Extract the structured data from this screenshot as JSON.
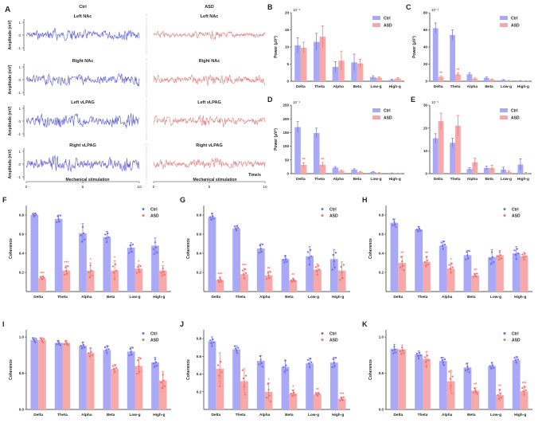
{
  "colors": {
    "ctrl": "#6b6bea",
    "ctrl_fill": "#a9a9f6",
    "asd": "#ee6e6e",
    "asd_fill": "#f7a8a8",
    "trace_ctrl": "#5b5bd6",
    "trace_asd": "#e88080"
  },
  "band_labels": [
    "Delta",
    "Theta",
    "Alpha",
    "Beta",
    "Low-g",
    "High-g"
  ],
  "panel_a": {
    "letter": "A",
    "col_titles": [
      "Ctrl",
      "ASD"
    ],
    "rows": [
      "Left NAc",
      "Right NAc",
      "Left vLPAG",
      "Right vLPAG"
    ],
    "ylabel": "Amplitude (mV)",
    "yticks": [
      "1",
      "0",
      "-1"
    ],
    "xticks": [
      "0",
      "5",
      "10"
    ],
    "time_label": "Time/s",
    "stim_label": "Mechanical stimulation"
  },
  "chart_data": [
    {
      "panel": "B",
      "type": "bar",
      "ylabel": "Power (μV²)",
      "exponent": "10⁻⁴",
      "ylim": [
        0,
        20
      ],
      "yticks": [
        "0",
        "5",
        "10",
        "15",
        "20"
      ],
      "categories": [
        "Delta",
        "Theta",
        "Alpha",
        "Beta",
        "Low-g",
        "High-g"
      ],
      "series": [
        {
          "name": "Ctrl",
          "values": [
            10.5,
            11.5,
            4.2,
            5.5,
            1.2,
            0.4
          ],
          "errors": [
            2.2,
            2.5,
            1.5,
            2.4,
            0.4,
            0.2
          ]
        },
        {
          "name": "ASD",
          "values": [
            9.8,
            13.0,
            6.0,
            5.2,
            1.0,
            0.8
          ],
          "errors": [
            1.6,
            3.2,
            2.8,
            1.2,
            0.3,
            0.3
          ]
        }
      ],
      "sig": [
        "",
        "",
        "",
        "",
        "",
        ""
      ],
      "legend": "top-right"
    },
    {
      "panel": "C",
      "type": "bar",
      "ylabel": "Power (μV²)",
      "exponent": "10⁻⁴",
      "ylim": [
        0,
        80
      ],
      "yticks": [
        "0",
        "20",
        "40",
        "60",
        "80"
      ],
      "categories": [
        "Delta",
        "Theta",
        "Alpha",
        "Beta",
        "Low-g",
        "High-g"
      ],
      "series": [
        {
          "name": "Ctrl",
          "values": [
            62,
            54,
            8,
            4,
            1.5,
            0.6
          ],
          "errors": [
            6,
            6,
            2,
            1,
            0.4,
            0.2
          ]
        },
        {
          "name": "ASD",
          "values": [
            5,
            8,
            3,
            2,
            0.8,
            0.3
          ],
          "errors": [
            1,
            2,
            1,
            0.5,
            0.3,
            0.1
          ]
        }
      ],
      "sig": [
        "**",
        "**",
        "",
        "",
        "",
        ""
      ],
      "legend": "top-right"
    },
    {
      "panel": "D",
      "type": "bar",
      "ylabel": "Power (μV²)",
      "exponent": "10⁻⁴",
      "ylim": [
        0,
        250
      ],
      "yticks": [
        "0",
        "50",
        "100",
        "150",
        "200",
        "250"
      ],
      "categories": [
        "Delta",
        "Theta",
        "Alpha",
        "Beta",
        "Low-g",
        "High-g"
      ],
      "series": [
        {
          "name": "Ctrl",
          "values": [
            170,
            148,
            22,
            15,
            6,
            2
          ],
          "errors": [
            20,
            18,
            4,
            3,
            1.5,
            0.5
          ]
        },
        {
          "name": "ASD",
          "values": [
            32,
            33,
            10,
            6,
            3,
            1
          ],
          "errors": [
            8,
            8,
            3,
            2,
            1,
            0.4
          ]
        }
      ],
      "sig": [
        "**",
        "**",
        "",
        "",
        "",
        ""
      ],
      "legend": "top-right"
    },
    {
      "panel": "E",
      "type": "bar",
      "ylabel": "",
      "exponent": "10⁻⁴",
      "ylim": [
        0,
        30
      ],
      "yticks": [
        "0",
        "10",
        "20",
        "30"
      ],
      "categories": [
        "Delta",
        "Theta",
        "Alpha",
        "Beta",
        "Low-g",
        "High-g"
      ],
      "series": [
        {
          "name": "Ctrl",
          "values": [
            15.5,
            13.5,
            2,
            2.5,
            1.8,
            4
          ],
          "errors": [
            2,
            2,
            0.6,
            0.8,
            1,
            2.5
          ]
        },
        {
          "name": "ASD",
          "values": [
            23,
            21,
            5,
            2.5,
            0.8,
            0.3
          ],
          "errors": [
            3.5,
            4.5,
            1.8,
            1.2,
            0.4,
            0.2
          ]
        }
      ],
      "sig": [
        "",
        "",
        "",
        "",
        "",
        ""
      ],
      "legend": "top-right"
    },
    {
      "panel": "F",
      "type": "bar",
      "ylabel": "Coherence",
      "ylim": [
        0,
        0.9
      ],
      "yticks": [
        "0.2",
        "0.4",
        "0.6",
        "0.8"
      ],
      "categories": [
        "Delta",
        "Theta",
        "Alpha",
        "Beta",
        "Low-g",
        "High-g"
      ],
      "series": [
        {
          "name": "Ctrl",
          "values": [
            0.8,
            0.76,
            0.61,
            0.57,
            0.46,
            0.48
          ],
          "errors": [
            0.02,
            0.04,
            0.1,
            0.06,
            0.05,
            0.08
          ]
        },
        {
          "name": "ASD",
          "values": [
            0.14,
            0.22,
            0.22,
            0.22,
            0.24,
            0.22
          ],
          "errors": [
            0.02,
            0.05,
            0.08,
            0.1,
            0.04,
            0.05
          ]
        }
      ],
      "sig": [
        "***",
        "***",
        "*",
        "*",
        "*",
        "*"
      ],
      "legend": "top-right"
    },
    {
      "panel": "G",
      "type": "bar",
      "ylabel": "Coherence",
      "ylim": [
        0,
        0.9
      ],
      "yticks": [
        "0.2",
        "0.4",
        "0.6",
        "0.8"
      ],
      "categories": [
        "Delta",
        "Theta",
        "Alpha",
        "Beta",
        "Low-g",
        "High-g"
      ],
      "series": [
        {
          "name": "Ctrl",
          "values": [
            0.78,
            0.66,
            0.45,
            0.34,
            0.37,
            0.34
          ],
          "errors": [
            0.04,
            0.03,
            0.05,
            0.04,
            0.1,
            0.1
          ]
        },
        {
          "name": "ASD",
          "values": [
            0.12,
            0.18,
            0.17,
            0.12,
            0.23,
            0.22
          ],
          "errors": [
            0.03,
            0.06,
            0.04,
            0.02,
            0.06,
            0.09
          ]
        }
      ],
      "sig": [
        "***",
        "***",
        "**",
        "**",
        "",
        ""
      ],
      "legend": "top-right"
    },
    {
      "panel": "H",
      "type": "bar",
      "ylabel": "Coherence",
      "ylim": [
        0,
        0.9
      ],
      "yticks": [
        "0.2",
        "0.4",
        "0.6",
        "0.8"
      ],
      "categories": [
        "Delta",
        "Theta",
        "Alpha",
        "Beta",
        "Low-g",
        "High-g"
      ],
      "series": [
        {
          "name": "Ctrl",
          "values": [
            0.72,
            0.65,
            0.48,
            0.38,
            0.36,
            0.4
          ],
          "errors": [
            0.04,
            0.03,
            0.05,
            0.05,
            0.08,
            0.07
          ]
        },
        {
          "name": "ASD",
          "values": [
            0.3,
            0.31,
            0.24,
            0.17,
            0.38,
            0.37
          ],
          "errors": [
            0.07,
            0.06,
            0.06,
            0.02,
            0.05,
            0.04
          ]
        }
      ],
      "sig": [
        "**",
        "**",
        "*",
        "**",
        "",
        ""
      ],
      "legend": "top-right"
    },
    {
      "panel": "I",
      "type": "bar",
      "ylabel": "Coherence",
      "ylim": [
        0,
        1.1
      ],
      "yticks": [
        "0.0",
        "0.5",
        "1.0"
      ],
      "categories": [
        "Delta",
        "Theta",
        "Alpha",
        "Beta",
        "Low-g",
        "High-g"
      ],
      "series": [
        {
          "name": "Ctrl",
          "values": [
            0.96,
            0.92,
            0.88,
            0.82,
            0.8,
            0.65
          ],
          "errors": [
            0.03,
            0.03,
            0.05,
            0.06,
            0.06,
            0.07
          ]
        },
        {
          "name": "ASD",
          "values": [
            0.96,
            0.92,
            0.78,
            0.56,
            0.6,
            0.4
          ],
          "errors": [
            0.03,
            0.03,
            0.07,
            0.06,
            0.12,
            0.12
          ]
        }
      ],
      "sig": [
        "",
        "",
        "",
        "",
        "",
        ""
      ],
      "legend": "top-right"
    },
    {
      "panel": "J",
      "type": "bar",
      "ylabel": "Coherence",
      "ylim": [
        0,
        0.9
      ],
      "yticks": [
        "0.2",
        "0.4",
        "0.6",
        "0.8"
      ],
      "categories": [
        "Delta",
        "Theta",
        "Alpha",
        "Beta",
        "Low-g",
        "High-g"
      ],
      "series": [
        {
          "name": "Ctrl",
          "values": [
            0.77,
            0.68,
            0.55,
            0.48,
            0.52,
            0.53
          ],
          "errors": [
            0.05,
            0.04,
            0.06,
            0.08,
            0.06,
            0.06
          ]
        },
        {
          "name": "ASD",
          "values": [
            0.46,
            0.32,
            0.2,
            0.18,
            0.17,
            0.12
          ],
          "errors": [
            0.18,
            0.14,
            0.1,
            0.04,
            0.02,
            0.02
          ]
        }
      ],
      "sig": [
        "",
        "",
        "*",
        "*",
        "**",
        "***"
      ],
      "legend": "top-right"
    },
    {
      "panel": "K",
      "type": "bar",
      "ylabel": "Coherence",
      "ylim": [
        0,
        1.1
      ],
      "yticks": [
        "0.0",
        "0.5",
        "1.0"
      ],
      "categories": [
        "Delta",
        "Theta",
        "Alpha",
        "Beta",
        "Low-g",
        "High-g"
      ],
      "series": [
        {
          "name": "Ctrl",
          "values": [
            0.84,
            0.76,
            0.67,
            0.58,
            0.6,
            0.68
          ],
          "errors": [
            0.06,
            0.05,
            0.05,
            0.06,
            0.05,
            0.05
          ]
        },
        {
          "name": "ASD",
          "values": [
            0.83,
            0.7,
            0.39,
            0.26,
            0.2,
            0.25
          ],
          "errors": [
            0.06,
            0.1,
            0.15,
            0.04,
            0.08,
            0.07
          ]
        }
      ],
      "sig": [
        "",
        "",
        "",
        "**",
        "**",
        "***"
      ],
      "legend": "top-right"
    }
  ]
}
